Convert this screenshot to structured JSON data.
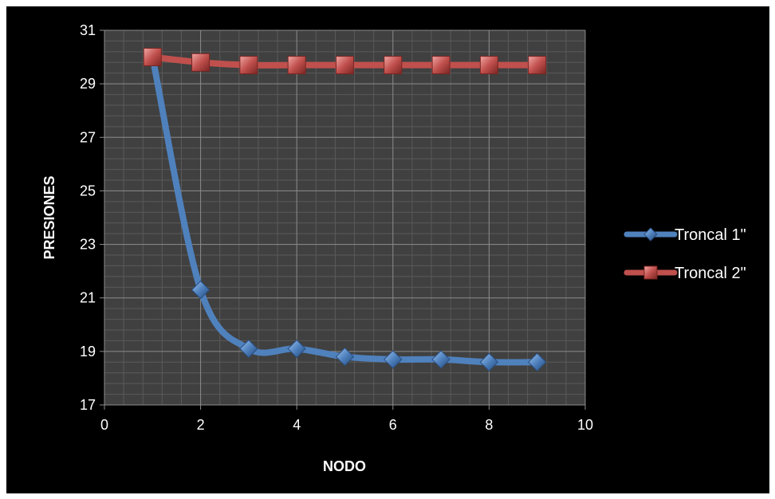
{
  "chart_data": {
    "type": "scatter",
    "xlabel": "NODO",
    "ylabel": "PRESIONES",
    "xlim": [
      0,
      10
    ],
    "ylim": [
      17,
      31
    ],
    "x_ticks": [
      "0",
      "2",
      "4",
      "6",
      "8",
      "10"
    ],
    "y_ticks": [
      "17",
      "19",
      "21",
      "23",
      "25",
      "27",
      "29",
      "31"
    ],
    "grid": true,
    "smoothed_lines": true,
    "legend_position": "right",
    "background": "#404040",
    "series": [
      {
        "name": "Troncal 1\"",
        "color": "#4F81BD",
        "marker": "diamond",
        "x": [
          1,
          2,
          3,
          4,
          5,
          6,
          7,
          8,
          9
        ],
        "y": [
          30.0,
          21.3,
          19.1,
          19.1,
          18.8,
          18.7,
          18.7,
          18.6,
          18.6
        ]
      },
      {
        "name": "Troncal 2\"",
        "color": "#C0504D",
        "marker": "square",
        "x": [
          1,
          2,
          3,
          4,
          5,
          6,
          7,
          8,
          9
        ],
        "y": [
          30.0,
          29.8,
          29.7,
          29.7,
          29.7,
          29.7,
          29.7,
          29.7,
          29.7
        ]
      }
    ]
  }
}
